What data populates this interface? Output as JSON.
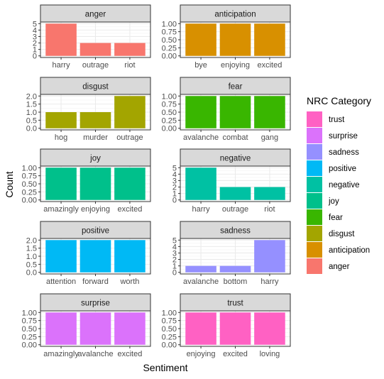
{
  "chart_data": {
    "type": "bar",
    "xlabel": "Sentiment",
    "ylabel": "Count",
    "legend_title": "NRC Category",
    "legend_placement": "right",
    "grid": true,
    "legend": [
      {
        "name": "trust",
        "color": "#FF61C3"
      },
      {
        "name": "surprise",
        "color": "#DB72FB"
      },
      {
        "name": "sadness",
        "color": "#9590FF"
      },
      {
        "name": "positive",
        "color": "#00B9F5"
      },
      {
        "name": "negative",
        "color": "#00C1A3"
      },
      {
        "name": "joy",
        "color": "#00C08B"
      },
      {
        "name": "fear",
        "color": "#39B600"
      },
      {
        "name": "disgust",
        "color": "#A3A500"
      },
      {
        "name": "anticipation",
        "color": "#D89000"
      },
      {
        "name": "anger",
        "color": "#F8766D"
      }
    ],
    "panels": [
      {
        "title": "anger",
        "color": "#F8766D",
        "categories": [
          "harry",
          "outrage",
          "riot"
        ],
        "values": [
          5,
          2,
          2
        ],
        "ylim": [
          0,
          5
        ],
        "yticks": [
          "0",
          "1",
          "2",
          "3",
          "4",
          "5"
        ]
      },
      {
        "title": "anticipation",
        "color": "#D89000",
        "categories": [
          "bye",
          "enjoying",
          "excited"
        ],
        "values": [
          1,
          1,
          1
        ],
        "ylim": [
          0,
          1
        ],
        "yticks": [
          "0.00",
          "0.25",
          "0.50",
          "0.75",
          "1.00"
        ]
      },
      {
        "title": "disgust",
        "color": "#A3A500",
        "categories": [
          "hog",
          "murder",
          "outrage"
        ],
        "values": [
          1,
          1,
          2
        ],
        "ylim": [
          0,
          2
        ],
        "yticks": [
          "0.0",
          "0.5",
          "1.0",
          "1.5",
          "2.0"
        ]
      },
      {
        "title": "fear",
        "color": "#39B600",
        "categories": [
          "avalanche",
          "combat",
          "gang"
        ],
        "values": [
          1,
          1,
          1
        ],
        "ylim": [
          0,
          1
        ],
        "yticks": [
          "0.00",
          "0.25",
          "0.50",
          "0.75",
          "1.00"
        ]
      },
      {
        "title": "joy",
        "color": "#00C08B",
        "categories": [
          "amazingly",
          "enjoying",
          "excited"
        ],
        "values": [
          1,
          1,
          1
        ],
        "ylim": [
          0,
          1
        ],
        "yticks": [
          "0.00",
          "0.25",
          "0.50",
          "0.75",
          "1.00"
        ]
      },
      {
        "title": "negative",
        "color": "#00C1A3",
        "categories": [
          "harry",
          "outrage",
          "riot"
        ],
        "values": [
          5,
          2,
          2
        ],
        "ylim": [
          0,
          5
        ],
        "yticks": [
          "0",
          "1",
          "2",
          "3",
          "4",
          "5"
        ]
      },
      {
        "title": "positive",
        "color": "#00B9F5",
        "categories": [
          "attention",
          "forward",
          "worth"
        ],
        "values": [
          2,
          2,
          2
        ],
        "ylim": [
          0,
          2
        ],
        "yticks": [
          "0.0",
          "0.5",
          "1.0",
          "1.5",
          "2.0"
        ]
      },
      {
        "title": "sadness",
        "color": "#9590FF",
        "categories": [
          "avalanche",
          "bottom",
          "harry"
        ],
        "values": [
          1,
          1,
          5
        ],
        "ylim": [
          0,
          5
        ],
        "yticks": [
          "0",
          "1",
          "2",
          "3",
          "4",
          "5"
        ]
      },
      {
        "title": "surprise",
        "color": "#DB72FB",
        "categories": [
          "amazingly",
          "avalanche",
          "excited"
        ],
        "values": [
          1,
          1,
          1
        ],
        "ylim": [
          0,
          1
        ],
        "yticks": [
          "0.00",
          "0.25",
          "0.50",
          "0.75",
          "1.00"
        ]
      },
      {
        "title": "trust",
        "color": "#FF61C3",
        "categories": [
          "enjoying",
          "excited",
          "loving"
        ],
        "values": [
          1,
          1,
          1
        ],
        "ylim": [
          0,
          1
        ],
        "yticks": [
          "0.00",
          "0.25",
          "0.50",
          "0.75",
          "1.00"
        ]
      }
    ]
  }
}
